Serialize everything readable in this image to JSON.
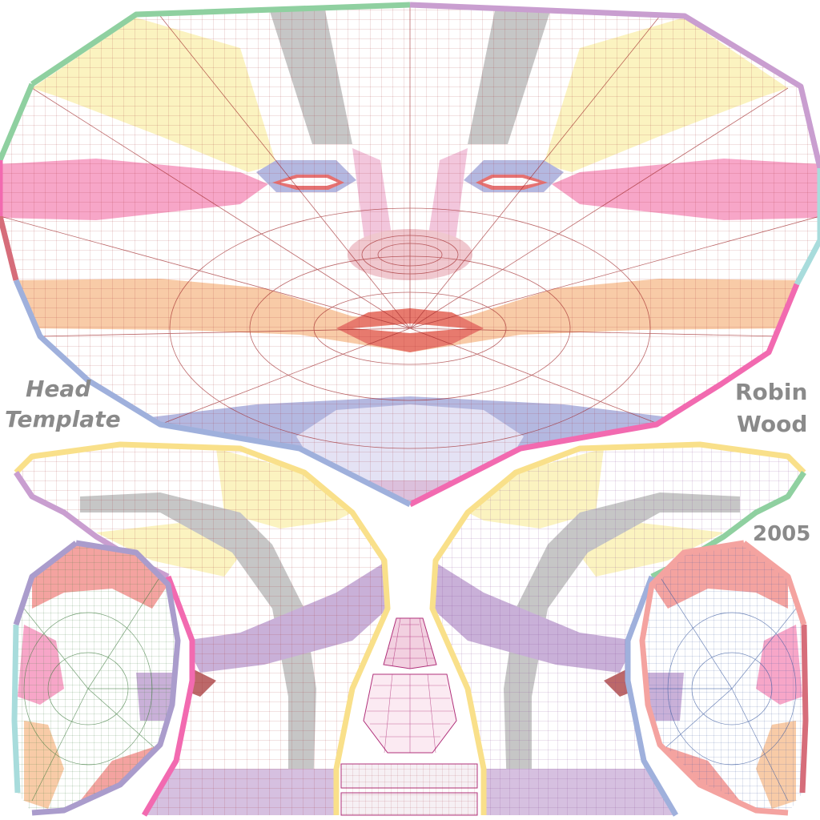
{
  "labels": {
    "head": "Head",
    "template": "Template",
    "author_first": "Robin",
    "author_last": "Wood",
    "year": "2005"
  },
  "colors": {
    "wire": "#a0282a",
    "wire_light": "#c98a8a",
    "wire_purple": "#7a3a8a",
    "wire_green": "#3c7a3c",
    "wire_blue": "#3a5aa0",
    "yellow": "#fbf3c0",
    "pink": "#f7a6c8",
    "peach": "#f8cba7",
    "lavender": "#b4b8e0",
    "grey": "#c6c6c6",
    "violet": "#c9b0d8",
    "salmon": "#f4a3a0",
    "outline_green": "#8fd0a0",
    "outline_purple": "#c99ed0",
    "outline_blue": "#9fb0dc",
    "outline_pink": "#f26ab0",
    "outline_yellow": "#f9e08a",
    "outline_teal": "#a8dcdc",
    "label_grey": "#8a8a8a"
  }
}
